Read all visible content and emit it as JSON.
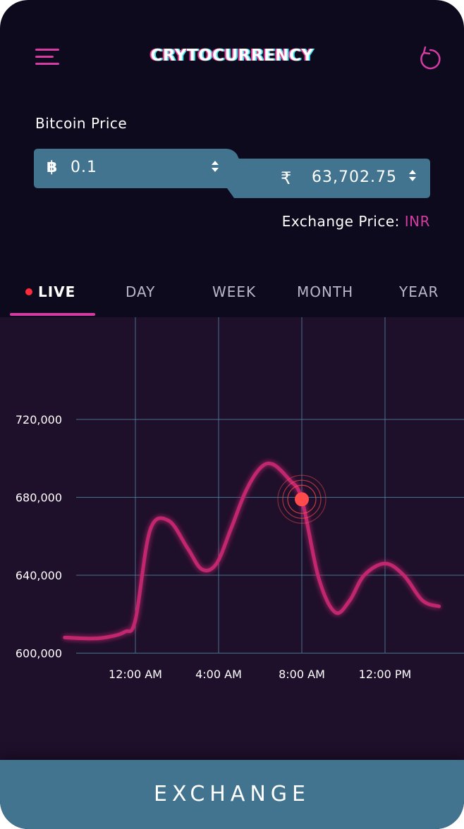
{
  "header": {
    "title": "CRYTOCURRENCY",
    "menu_icon": "hamburger-menu-icon",
    "refresh_icon": "refresh-icon"
  },
  "price": {
    "label": "Bitcoin Price",
    "btc_symbol": "฿",
    "btc_value": "0.1",
    "inr_symbol": "₹",
    "inr_value": "63,702.75",
    "exchange_label": "Exchange Price:",
    "exchange_currency": "INR"
  },
  "tabs": [
    {
      "label": "LIVE",
      "active": true
    },
    {
      "label": "DAY",
      "active": false
    },
    {
      "label": "WEEK",
      "active": false
    },
    {
      "label": "MONTH",
      "active": false
    },
    {
      "label": "YEAR",
      "active": false
    }
  ],
  "colors": {
    "background": "#0c0a1c",
    "chart_background": "#1e0f2b",
    "accent": "#d63ba3",
    "line": "#c2266e",
    "input_fill": "#427490",
    "marker": "#ff4b4b"
  },
  "chart_data": {
    "type": "line",
    "y_ticks": [
      "720,000",
      "680,000",
      "640,000",
      "600,000"
    ],
    "x_ticks": [
      "12:00 AM",
      "4:00 AM",
      "8:00 AM",
      "12:00 PM"
    ],
    "ylim": [
      600000,
      720000
    ],
    "series": [
      {
        "x": [
          -3.4,
          -2.0,
          -1.2,
          -0.5,
          0.0,
          0.7,
          1.6,
          2.5,
          3.2,
          3.9,
          4.6,
          5.3,
          6.0,
          6.6,
          7.4,
          8.0,
          8.8,
          9.6,
          10.3,
          11.0,
          12.0,
          12.9,
          13.8,
          14.6
        ],
        "y": [
          608000,
          607500,
          608500,
          611000,
          617000,
          663000,
          668000,
          654000,
          643000,
          646000,
          664000,
          683000,
          695000,
          697000,
          689000,
          679000,
          639000,
          621000,
          627000,
          640000,
          646000,
          640000,
          627000,
          624000
        ]
      }
    ],
    "highlight": {
      "x": 8.0,
      "y": 679000
    },
    "grid": true
  },
  "exchange_button": {
    "label": "EXCHANGE"
  }
}
